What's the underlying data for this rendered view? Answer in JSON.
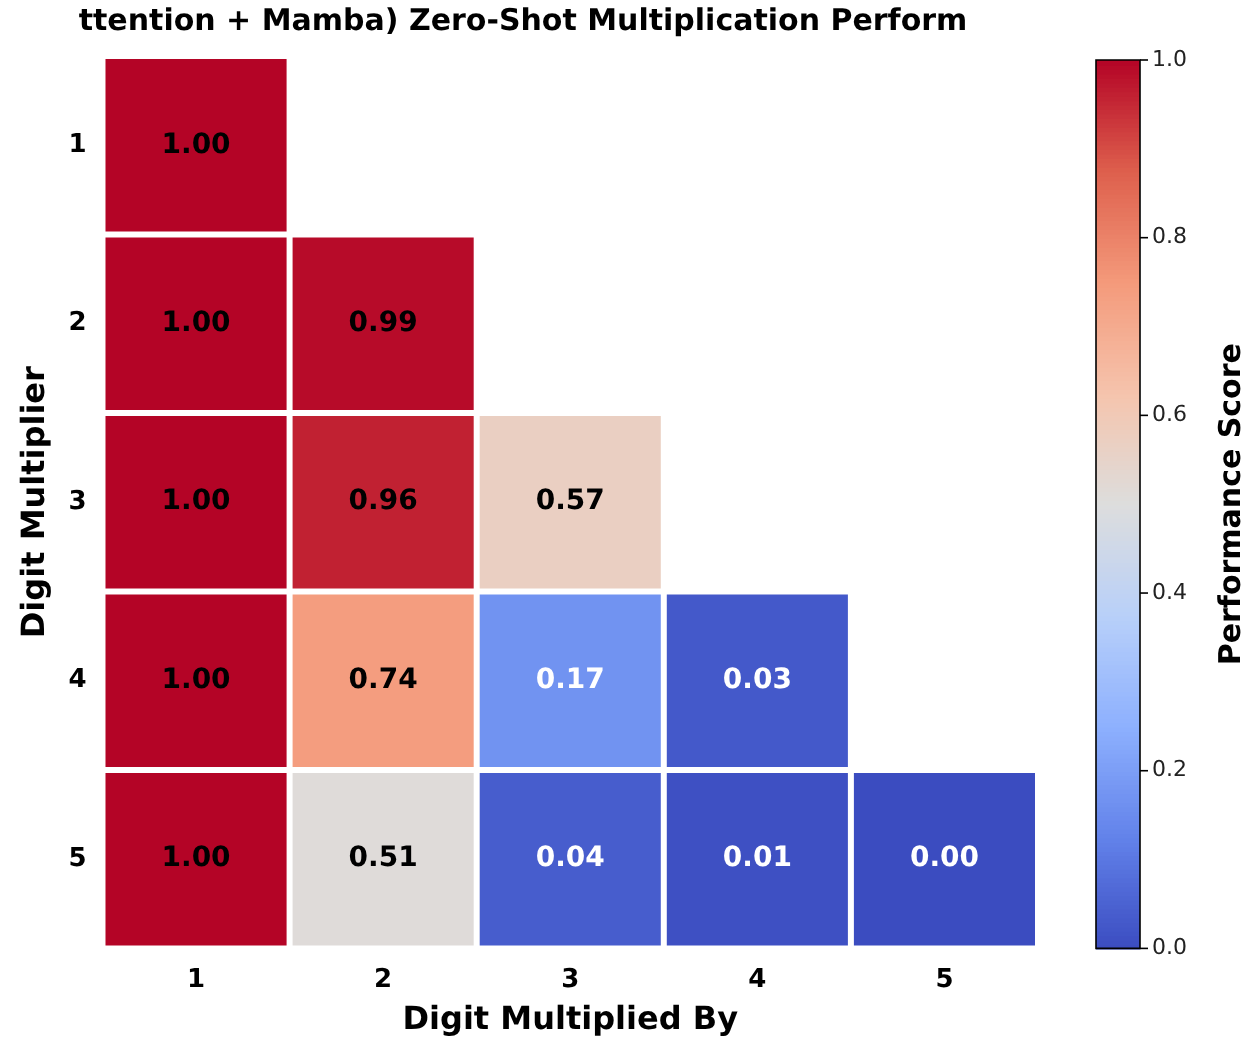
{
  "chart_data": {
    "type": "heatmap",
    "title": "ttention + Mamba) Zero-Shot Multiplication Perform",
    "xlabel": "Digit Multiplied By",
    "ylabel": "Digit Multiplier",
    "clabel": "Performance Score",
    "categories": [
      "1",
      "2",
      "3",
      "4",
      "5"
    ],
    "y_categories": [
      "1",
      "2",
      "3",
      "4",
      "5"
    ],
    "cells": [
      [
        1.0,
        null,
        null,
        null,
        null
      ],
      [
        1.0,
        0.99,
        null,
        null,
        null
      ],
      [
        1.0,
        0.96,
        0.57,
        null,
        null
      ],
      [
        1.0,
        0.74,
        0.17,
        0.03,
        null
      ],
      [
        1.0,
        0.51,
        0.04,
        0.01,
        0.0
      ]
    ],
    "cell_labels": [
      [
        "1.00",
        null,
        null,
        null,
        null
      ],
      [
        "1.00",
        "0.99",
        null,
        null,
        null
      ],
      [
        "1.00",
        "0.96",
        "0.57",
        null,
        null
      ],
      [
        "1.00",
        "0.74",
        "0.17",
        "0.03",
        null
      ],
      [
        "1.00",
        "0.51",
        "0.04",
        "0.01",
        "0.00"
      ]
    ],
    "clim": [
      0.0,
      1.0
    ],
    "cticks": [
      {
        "value": 0.0,
        "label": "0.0"
      },
      {
        "value": 0.2,
        "label": "0.2"
      },
      {
        "value": 0.4,
        "label": "0.4"
      },
      {
        "value": 0.6,
        "label": "0.6"
      },
      {
        "value": 0.8,
        "label": "0.8"
      },
      {
        "value": 1.0,
        "label": "1.0"
      }
    ]
  }
}
